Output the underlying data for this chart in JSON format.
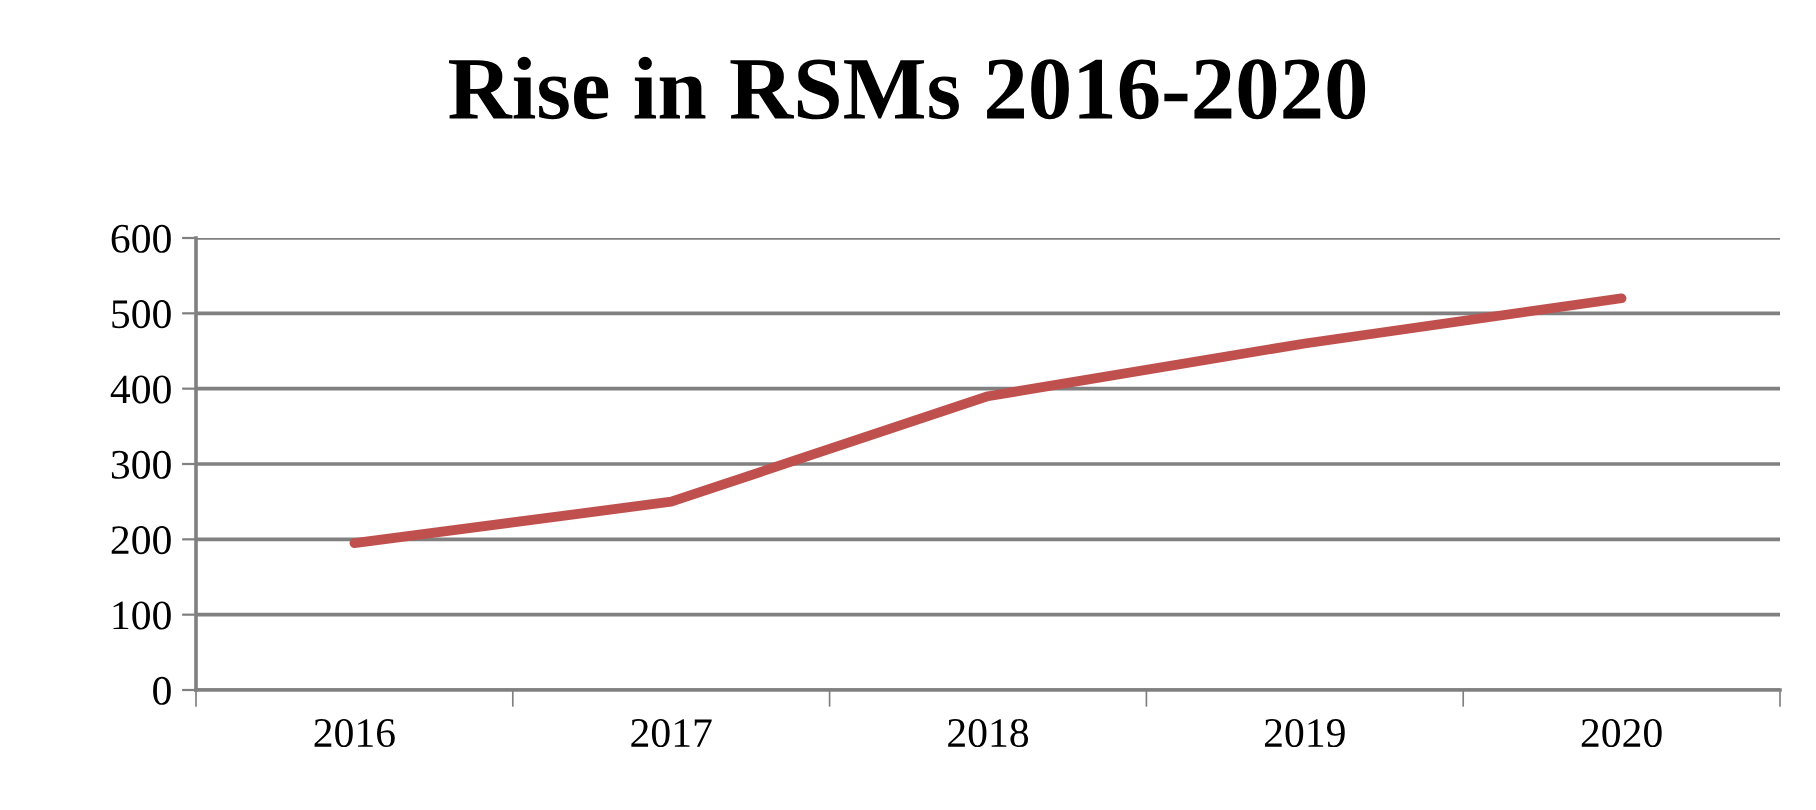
{
  "chart_data": {
    "type": "line",
    "title": "Rise in RSMs 2016-2020",
    "categories": [
      "2016",
      "2017",
      "2018",
      "2019",
      "2020"
    ],
    "series": [
      {
        "color": "#c0504d",
        "values": [
          195,
          250,
          390,
          460,
          520
        ]
      }
    ],
    "ylim": [
      0,
      600
    ],
    "yticks": [
      0,
      100,
      200,
      300,
      400,
      500,
      600
    ],
    "grid": "y",
    "marker": "none",
    "line_style": "solid"
  }
}
